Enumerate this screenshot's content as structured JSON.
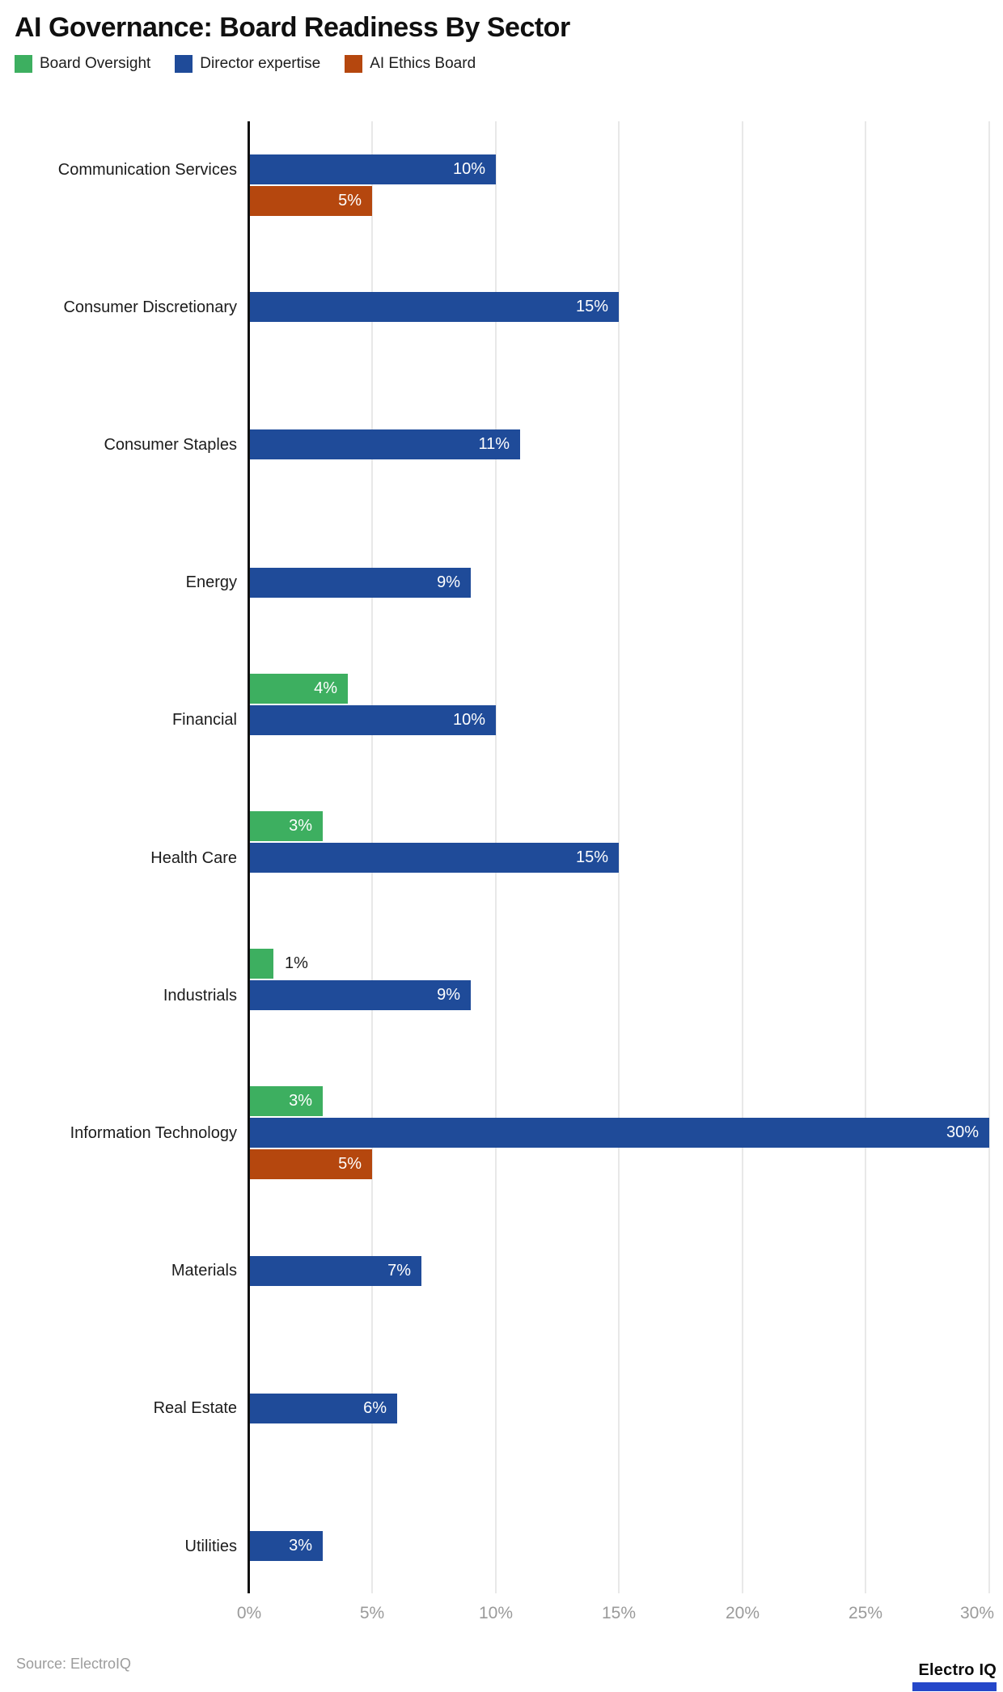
{
  "title": "AI Governance: Board Readiness By Sector",
  "legend": {
    "items": [
      {
        "label": "Board Oversight",
        "color": "#3daf60"
      },
      {
        "label": "Director expertise",
        "color": "#1f4b99"
      },
      {
        "label": "AI Ethics Board",
        "color": "#b5470e"
      }
    ]
  },
  "source": {
    "text": "Source: ElectroIQ"
  },
  "brand": {
    "text": "Electro IQ",
    "underline_color": "#2547c9"
  },
  "colors": {
    "axis": "#111111",
    "gridline": "#e8e8e8",
    "tick_label": "#9a9a9a",
    "category_label": "#1c1c1c",
    "value_label_inside": "#ffffff",
    "value_label_outside": "#1c1c1c",
    "background": "#ffffff"
  },
  "chart_data": {
    "type": "bar",
    "orientation": "horizontal",
    "title": "AI Governance: Board Readiness By Sector",
    "xlabel": "",
    "ylabel": "",
    "xlim": [
      0,
      30
    ],
    "x_ticks": [
      0,
      5,
      10,
      15,
      20,
      25,
      30
    ],
    "x_tick_labels": [
      "0%",
      "5%",
      "10%",
      "15%",
      "20%",
      "25%",
      "30%"
    ],
    "grid": true,
    "legend_position": "top",
    "value_suffix": "%",
    "categories": [
      "Communication Services",
      "Consumer Discretionary",
      "Consumer Staples",
      "Energy",
      "Financial",
      "Health Care",
      "Industrials",
      "Information Technology",
      "Materials",
      "Real Estate",
      "Utilities"
    ],
    "series": [
      {
        "name": "Board Oversight",
        "color": "#3daf60",
        "values": [
          null,
          null,
          null,
          null,
          4,
          3,
          1,
          3,
          null,
          null,
          null
        ]
      },
      {
        "name": "Director expertise",
        "color": "#1f4b99",
        "values": [
          10,
          15,
          11,
          9,
          10,
          15,
          9,
          30,
          7,
          6,
          3
        ]
      },
      {
        "name": "AI Ethics Board",
        "color": "#b5470e",
        "values": [
          5,
          null,
          null,
          null,
          null,
          null,
          null,
          5,
          null,
          null,
          null
        ]
      }
    ],
    "data_labels": [
      "10%",
      "5%",
      "15%",
      "11%",
      "9%",
      "4%",
      "3%",
      "1%",
      "30%",
      "7%",
      "6%",
      "3%"
    ]
  }
}
